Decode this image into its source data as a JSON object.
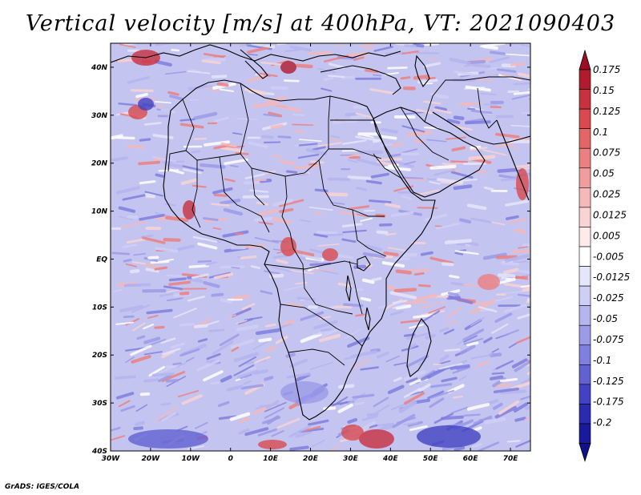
{
  "title": "Vertical velocity [m/s] at 400hPa, VT: 2021090403",
  "credit": "GrADS: IGES/COLA",
  "map": {
    "lat_labels": [
      "40N",
      "30N",
      "20N",
      "10N",
      "EQ",
      "10S",
      "20S",
      "30S",
      "40S"
    ],
    "lon_labels": [
      "30W",
      "20W",
      "10W",
      "0",
      "10E",
      "20E",
      "30E",
      "40E",
      "50E",
      "60E",
      "70E"
    ],
    "lon_range": [
      -30,
      75
    ],
    "lat_range": [
      -40,
      45
    ],
    "variable": "Vertical velocity",
    "units": "m/s",
    "level": "400hPa",
    "valid_time": "2021090403"
  },
  "colorbar": {
    "labels": [
      "0.175",
      "0.15",
      "0.125",
      "0.1",
      "0.075",
      "0.05",
      "0.025",
      "0.0125",
      "0.005",
      "-0.005",
      "-0.0125",
      "-0.025",
      "-0.05",
      "-0.075",
      "-0.1",
      "-0.125",
      "-0.175",
      "-0.2"
    ],
    "colors": [
      "#b01c2e",
      "#c8313e",
      "#d84a4f",
      "#e46565",
      "#ec8080",
      "#f29d9d",
      "#f6b9b9",
      "#fad4d4",
      "#fdeaea",
      "#ffffff",
      "#e6e6fb",
      "#cfcff6",
      "#b5b5f0",
      "#9b9be8",
      "#7f7fdf",
      "#6161d2",
      "#4242c2",
      "#2b2bb0",
      "#19199c"
    ],
    "tip_top_color": "#9a1022",
    "tip_bottom_color": "#10108a"
  }
}
